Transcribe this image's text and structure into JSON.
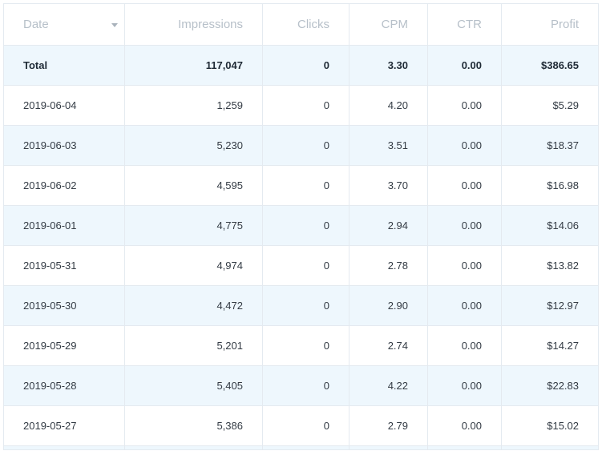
{
  "columns": [
    "Date",
    "Impressions",
    "Clicks",
    "CPM",
    "CTR",
    "Profit"
  ],
  "total": {
    "label": "Total",
    "impressions": "117,047",
    "clicks": "0",
    "cpm": "3.30",
    "ctr": "0.00",
    "profit": "$386.65"
  },
  "rows": [
    {
      "date": "2019-06-04",
      "impressions": "1,259",
      "clicks": "0",
      "cpm": "4.20",
      "ctr": "0.00",
      "profit": "$5.29"
    },
    {
      "date": "2019-06-03",
      "impressions": "5,230",
      "clicks": "0",
      "cpm": "3.51",
      "ctr": "0.00",
      "profit": "$18.37"
    },
    {
      "date": "2019-06-02",
      "impressions": "4,595",
      "clicks": "0",
      "cpm": "3.70",
      "ctr": "0.00",
      "profit": "$16.98"
    },
    {
      "date": "2019-06-01",
      "impressions": "4,775",
      "clicks": "0",
      "cpm": "2.94",
      "ctr": "0.00",
      "profit": "$14.06"
    },
    {
      "date": "2019-05-31",
      "impressions": "4,974",
      "clicks": "0",
      "cpm": "2.78",
      "ctr": "0.00",
      "profit": "$13.82"
    },
    {
      "date": "2019-05-30",
      "impressions": "4,472",
      "clicks": "0",
      "cpm": "2.90",
      "ctr": "0.00",
      "profit": "$12.97"
    },
    {
      "date": "2019-05-29",
      "impressions": "5,201",
      "clicks": "0",
      "cpm": "2.74",
      "ctr": "0.00",
      "profit": "$14.27"
    },
    {
      "date": "2019-05-28",
      "impressions": "5,405",
      "clicks": "0",
      "cpm": "4.22",
      "ctr": "0.00",
      "profit": "$22.83"
    },
    {
      "date": "2019-05-27",
      "impressions": "5,386",
      "clicks": "0",
      "cpm": "2.79",
      "ctr": "0.00",
      "profit": "$15.02"
    }
  ],
  "sort_icon": "chevron-down-icon",
  "colors": {
    "header_text": "#b7c0c9",
    "row_stripe": "#eef7fd",
    "border": "#e4eaf0",
    "body_text": "#333b44"
  }
}
